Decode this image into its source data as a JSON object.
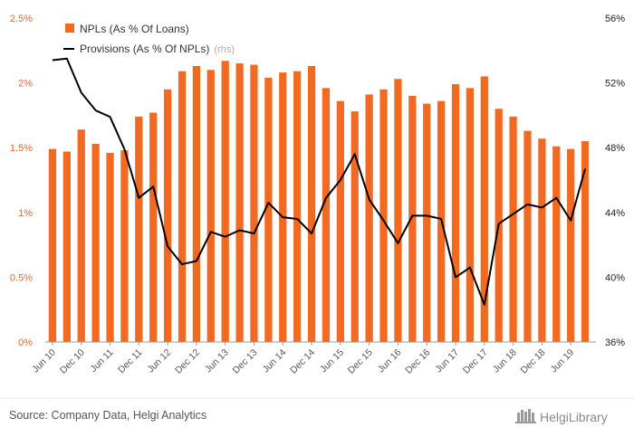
{
  "chart_data": {
    "type": "bar",
    "categories": [
      "Jun 10",
      "Sep 10",
      "Dec 10",
      "Mar 11",
      "Jun 11",
      "Sep 11",
      "Dec 11",
      "Mar 12",
      "Jun 12",
      "Sep 12",
      "Dec 12",
      "Mar 13",
      "Jun 13",
      "Sep 13",
      "Dec 13",
      "Mar 14",
      "Jun 14",
      "Sep 14",
      "Dec 14",
      "Mar 15",
      "Jun 15",
      "Sep 15",
      "Dec 15",
      "Mar 16",
      "Jun 16",
      "Sep 16",
      "Dec 16",
      "Mar 17",
      "Jun 17",
      "Sep 17",
      "Dec 17",
      "Mar 18",
      "Jun 18",
      "Sep 18",
      "Dec 18",
      "Mar 19",
      "Jun 19",
      "Sep 19"
    ],
    "x_tick_labels": [
      "Jun 10",
      "Dec 10",
      "Jun 11",
      "Dec 11",
      "Jun 12",
      "Dec 12",
      "Jun 13",
      "Dec 13",
      "Jun 14",
      "Dec 14",
      "Jun 15",
      "Dec 15",
      "Jun 16",
      "Dec 16",
      "Jun 17",
      "Dec 17",
      "Jun 18",
      "Dec 18",
      "Jun 19"
    ],
    "series": [
      {
        "name": "NPLs (As % Of Loans)",
        "axis": "left",
        "render": "bar",
        "color": "#f26a21",
        "values": [
          1.49,
          1.47,
          1.64,
          1.53,
          1.46,
          1.48,
          1.74,
          1.77,
          1.95,
          2.09,
          2.13,
          2.1,
          2.17,
          2.15,
          2.14,
          2.04,
          2.08,
          2.09,
          2.13,
          1.96,
          1.86,
          1.78,
          1.91,
          1.95,
          2.03,
          1.9,
          1.84,
          1.86,
          1.99,
          1.96,
          2.05,
          1.8,
          1.74,
          1.63,
          1.57,
          1.51,
          1.49,
          1.55
        ]
      },
      {
        "name": "Provisions (As % Of NPLs)",
        "axis": "right",
        "render": "line",
        "color": "#000000",
        "values": [
          53.4,
          53.5,
          51.4,
          50.3,
          49.9,
          47.9,
          44.9,
          45.6,
          41.9,
          40.8,
          41.0,
          42.8,
          42.5,
          42.9,
          42.7,
          44.6,
          43.7,
          43.6,
          42.7,
          44.9,
          46.0,
          47.6,
          44.8,
          43.5,
          42.1,
          43.8,
          43.8,
          43.6,
          40.0,
          40.6,
          38.3,
          43.3,
          43.9,
          44.5,
          44.3,
          44.9,
          43.5,
          46.7
        ]
      }
    ],
    "rhs_tag": "(rhs)",
    "y_left": {
      "ticks": [
        "0%",
        "0.5%",
        "1%",
        "1.5%",
        "2%",
        "2.5%"
      ],
      "ylim": [
        0,
        2.5
      ]
    },
    "y_right": {
      "ticks": [
        "36%",
        "40%",
        "44%",
        "48%",
        "52%",
        "56%"
      ],
      "ylim": [
        36,
        56
      ]
    },
    "legend_position": "top-left",
    "grid": false
  },
  "footer": {
    "source": "Source: Company Data, Helgi Analytics",
    "brand": "HelgiLibrary"
  }
}
